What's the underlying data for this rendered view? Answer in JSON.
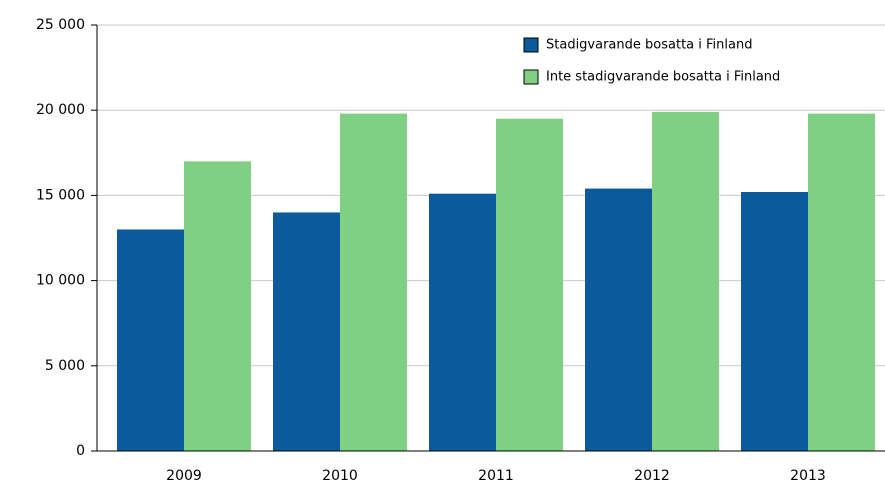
{
  "chart_data": {
    "type": "bar",
    "categories": [
      "2009",
      "2010",
      "2011",
      "2012",
      "2013"
    ],
    "series": [
      {
        "name": "Stadigvarande bosatta i Finland",
        "color": "#0a5a9c",
        "values": [
          13000,
          14000,
          15100,
          15400,
          15200
        ]
      },
      {
        "name": "Inte stadigvarande bosatta i Finland",
        "color": "#80d083",
        "values": [
          17000,
          19800,
          19500,
          19900,
          19800
        ]
      }
    ],
    "ylim": [
      0,
      25000
    ],
    "yticks": [
      0,
      {
        "value": 5000,
        "label": "5 000"
      },
      {
        "value": 10000,
        "label": "10 000"
      },
      {
        "value": 15000,
        "label": "15 000"
      },
      {
        "value": 20000,
        "label": "20 000"
      },
      {
        "value": 25000,
        "label": "25 000"
      }
    ],
    "grid": true,
    "legend": "top-right"
  }
}
